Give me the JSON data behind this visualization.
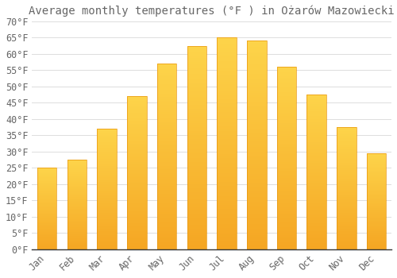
{
  "title": "Average monthly temperatures (°F ) in Ożarów Mazowiecki",
  "months": [
    "Jan",
    "Feb",
    "Mar",
    "Apr",
    "May",
    "Jun",
    "Jul",
    "Aug",
    "Sep",
    "Oct",
    "Nov",
    "Dec"
  ],
  "values": [
    25,
    27.5,
    37,
    47,
    57,
    62.5,
    65,
    64,
    56,
    47.5,
    37.5,
    29.5
  ],
  "bar_color_bottom": "#F5A623",
  "bar_color_top": "#FDD44A",
  "background_color": "#ffffff",
  "grid_color": "#dddddd",
  "text_color": "#666666",
  "axis_color": "#333333",
  "ylim": [
    0,
    70
  ],
  "yticks": [
    0,
    5,
    10,
    15,
    20,
    25,
    30,
    35,
    40,
    45,
    50,
    55,
    60,
    65,
    70
  ],
  "ylabel_suffix": "°F",
  "title_fontsize": 10,
  "tick_fontsize": 8.5,
  "font_family": "monospace",
  "bar_width": 0.65
}
